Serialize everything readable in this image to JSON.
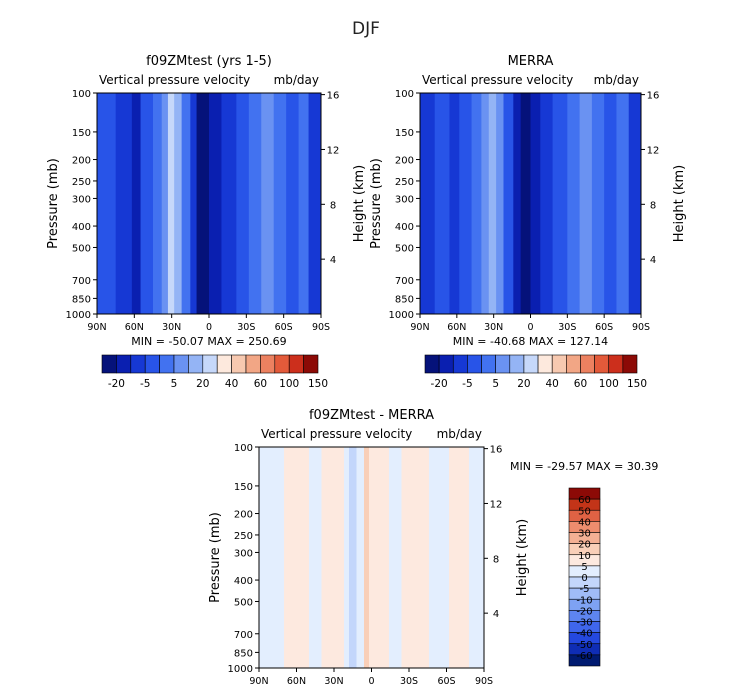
{
  "figure": {
    "title": "DJF"
  },
  "colors": {
    "panel_scale": [
      "#05127a",
      "#0a1fb0",
      "#1638d4",
      "#2854e8",
      "#4272f0",
      "#6a92f2",
      "#94b4f5",
      "#c6d8fa",
      "#fde9dd",
      "#f7c9b0",
      "#f2a685",
      "#ec8160",
      "#e35a3a",
      "#cc2f1c",
      "#8c0a06"
    ],
    "diff_scale": [
      "#001a70",
      "#0f2db5",
      "#2448df",
      "#3f66ec",
      "#5e85f0",
      "#7ea2f3",
      "#a0bcf7",
      "#c3d6fb",
      "#e3eefe",
      "#fde9df",
      "#f9cfb8",
      "#f4b094",
      "#ee8d6e",
      "#e06244",
      "#c33418",
      "#8c0a06"
    ]
  },
  "chart_data": [
    {
      "type": "heatmap",
      "name": "model",
      "title": "f09ZMtest (yrs 1-5)",
      "subtitle_left": "Vertical pressure velocity",
      "subtitle_right": "mb/day",
      "ylabel": "Pressure (mb)",
      "ylabel_right": "Height (km)",
      "x_ticks": [
        "90N",
        "60N",
        "30N",
        "0",
        "30S",
        "60S",
        "90S"
      ],
      "x_range": [
        90,
        -90
      ],
      "y_ticks": [
        100,
        150,
        200,
        250,
        300,
        400,
        500,
        700,
        850,
        1000
      ],
      "y_range": [
        100,
        1000
      ],
      "y_scale": "log",
      "height_ticks": [
        4,
        8,
        12,
        16
      ],
      "stats": "MIN = -50.07   MAX = 250.69",
      "colorbar_labels": [
        "-20",
        "-5",
        "5",
        "20",
        "40",
        "60",
        "100",
        "150"
      ],
      "bands": [
        {
          "lat_from": 90,
          "lat_to": 75,
          "level": 3
        },
        {
          "lat_from": 75,
          "lat_to": 62,
          "level": 2
        },
        {
          "lat_from": 62,
          "lat_to": 55,
          "level": 1
        },
        {
          "lat_from": 55,
          "lat_to": 45,
          "level": 3
        },
        {
          "lat_from": 45,
          "lat_to": 38,
          "level": 4
        },
        {
          "lat_from": 38,
          "lat_to": 33,
          "level": 5
        },
        {
          "lat_from": 33,
          "lat_to": 28,
          "level": 7
        },
        {
          "lat_from": 28,
          "lat_to": 22,
          "level": 6
        },
        {
          "lat_from": 22,
          "lat_to": 15,
          "level": 4
        },
        {
          "lat_from": 15,
          "lat_to": 10,
          "level": 2
        },
        {
          "lat_from": 10,
          "lat_to": 0,
          "level": 0
        },
        {
          "lat_from": 0,
          "lat_to": -10,
          "level": 1
        },
        {
          "lat_from": -10,
          "lat_to": -22,
          "level": 2
        },
        {
          "lat_from": -22,
          "lat_to": -32,
          "level": 3
        },
        {
          "lat_from": -32,
          "lat_to": -42,
          "level": 4
        },
        {
          "lat_from": -42,
          "lat_to": -52,
          "level": 5
        },
        {
          "lat_from": -52,
          "lat_to": -62,
          "level": 4
        },
        {
          "lat_from": -62,
          "lat_to": -72,
          "level": 3
        },
        {
          "lat_from": -72,
          "lat_to": -80,
          "level": 4
        },
        {
          "lat_from": -80,
          "lat_to": -90,
          "level": 2
        }
      ]
    },
    {
      "type": "heatmap",
      "name": "obs",
      "title": "MERRA",
      "subtitle_left": "Vertical pressure velocity",
      "subtitle_right": "mb/day",
      "ylabel": "Pressure (mb)",
      "ylabel_right": "Height (km)",
      "x_ticks": [
        "90N",
        "60N",
        "30N",
        "0",
        "30S",
        "60S",
        "90S"
      ],
      "x_range": [
        90,
        -90
      ],
      "y_ticks": [
        100,
        150,
        200,
        250,
        300,
        400,
        500,
        700,
        850,
        1000
      ],
      "y_range": [
        100,
        1000
      ],
      "y_scale": "log",
      "height_ticks": [
        4,
        8,
        12,
        16
      ],
      "stats": "MIN = -40.68   MAX = 127.14",
      "colorbar_labels": [
        "-20",
        "-5",
        "5",
        "20",
        "40",
        "60",
        "100",
        "150"
      ],
      "bands": [
        {
          "lat_from": 90,
          "lat_to": 78,
          "level": 2
        },
        {
          "lat_from": 78,
          "lat_to": 66,
          "level": 3
        },
        {
          "lat_from": 66,
          "lat_to": 58,
          "level": 2
        },
        {
          "lat_from": 58,
          "lat_to": 48,
          "level": 3
        },
        {
          "lat_from": 48,
          "lat_to": 40,
          "level": 4
        },
        {
          "lat_from": 40,
          "lat_to": 34,
          "level": 5
        },
        {
          "lat_from": 34,
          "lat_to": 28,
          "level": 6
        },
        {
          "lat_from": 28,
          "lat_to": 22,
          "level": 5
        },
        {
          "lat_from": 22,
          "lat_to": 14,
          "level": 3
        },
        {
          "lat_from": 14,
          "lat_to": 8,
          "level": 1
        },
        {
          "lat_from": 8,
          "lat_to": 0,
          "level": 0
        },
        {
          "lat_from": 0,
          "lat_to": -8,
          "level": 1
        },
        {
          "lat_from": -8,
          "lat_to": -18,
          "level": 2
        },
        {
          "lat_from": -18,
          "lat_to": -30,
          "level": 3
        },
        {
          "lat_from": -30,
          "lat_to": -40,
          "level": 4
        },
        {
          "lat_from": -40,
          "lat_to": -50,
          "level": 5
        },
        {
          "lat_from": -50,
          "lat_to": -60,
          "level": 4
        },
        {
          "lat_from": -60,
          "lat_to": -70,
          "level": 3
        },
        {
          "lat_from": -70,
          "lat_to": -80,
          "level": 4
        },
        {
          "lat_from": -80,
          "lat_to": -90,
          "level": 2
        }
      ]
    },
    {
      "type": "heatmap",
      "name": "diff",
      "title": "f09ZMtest - MERRA",
      "subtitle_left": "Vertical pressure velocity",
      "subtitle_right": "mb/day",
      "ylabel": "Pressure (mb)",
      "ylabel_right": "Height (km)",
      "x_ticks": [
        "90N",
        "60N",
        "30N",
        "0",
        "30S",
        "60S",
        "90S"
      ],
      "x_range": [
        90,
        -90
      ],
      "y_ticks": [
        100,
        150,
        200,
        250,
        300,
        400,
        500,
        700,
        850,
        1000
      ],
      "y_range": [
        100,
        1000
      ],
      "y_scale": "log",
      "height_ticks": [
        4,
        8,
        12,
        16
      ],
      "stats": "MIN = -29.57   MAX = 30.39",
      "colorbar_labels": [
        "60",
        "50",
        "40",
        "30",
        "20",
        "10",
        "5",
        "0",
        "-5",
        "-10",
        "-20",
        "-30",
        "-40",
        "-50",
        "-60"
      ],
      "bands": [
        {
          "lat_from": 90,
          "lat_to": 70,
          "level": 8
        },
        {
          "lat_from": 70,
          "lat_to": 50,
          "level": 9
        },
        {
          "lat_from": 50,
          "lat_to": 40,
          "level": 8
        },
        {
          "lat_from": 40,
          "lat_to": 22,
          "level": 9
        },
        {
          "lat_from": 22,
          "lat_to": 18,
          "level": 8
        },
        {
          "lat_from": 18,
          "lat_to": 12,
          "level": 7
        },
        {
          "lat_from": 12,
          "lat_to": 6,
          "level": 8
        },
        {
          "lat_from": 6,
          "lat_to": 2,
          "level": 10
        },
        {
          "lat_from": 2,
          "lat_to": -14,
          "level": 9
        },
        {
          "lat_from": -14,
          "lat_to": -24,
          "level": 8
        },
        {
          "lat_from": -24,
          "lat_to": -46,
          "level": 9
        },
        {
          "lat_from": -46,
          "lat_to": -62,
          "level": 8
        },
        {
          "lat_from": -62,
          "lat_to": -78,
          "level": 9
        },
        {
          "lat_from": -78,
          "lat_to": -90,
          "level": 8
        }
      ]
    }
  ]
}
